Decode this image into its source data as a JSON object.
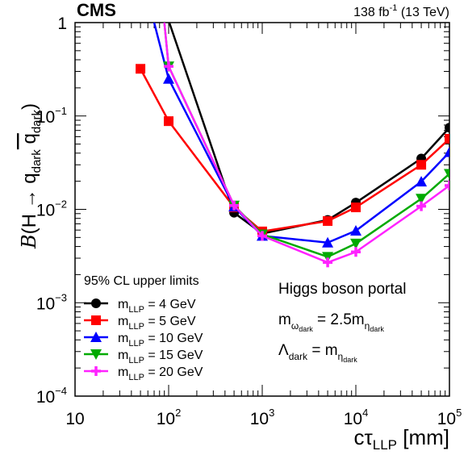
{
  "chart_data": {
    "type": "line",
    "experiment": "CMS",
    "luminosity_base": "138 fb",
    "luminosity_exp": "-1",
    "luminosity_energy": "(13 TeV)",
    "xscale": "log",
    "yscale": "log",
    "xlim": [
      10,
      100000
    ],
    "ylim": [
      0.0001,
      1
    ],
    "xlabel": {
      "main": "cτ",
      "sub": "LLP",
      "units": " [mm]"
    },
    "ylabel": {
      "func": "B",
      "open": "(H → q",
      "sub1": "dark",
      "mid": " q",
      "sub2": "dark",
      "close": ")"
    },
    "x_ticks": [
      {
        "value": 10,
        "base": "10",
        "exp": ""
      },
      {
        "value": 100,
        "base": "10",
        "exp": "2"
      },
      {
        "value": 1000,
        "base": "10",
        "exp": "3"
      },
      {
        "value": 10000,
        "base": "10",
        "exp": "4"
      },
      {
        "value": 100000,
        "base": "10",
        "exp": "5"
      }
    ],
    "y_ticks": [
      {
        "value": 0.0001,
        "base": "10",
        "exp": "−4"
      },
      {
        "value": 0.001,
        "base": "10",
        "exp": "−3"
      },
      {
        "value": 0.01,
        "base": "10",
        "exp": "−2"
      },
      {
        "value": 0.1,
        "base": "10",
        "exp": "−1"
      },
      {
        "value": 1,
        "base": "1",
        "exp": ""
      }
    ],
    "legend_title": "95% CL upper limits",
    "legend_position": "bottom-left",
    "series": [
      {
        "name_main": "m",
        "name_sub": "LLP",
        "name_rest": " = 4 GeV",
        "color": "#000000",
        "marker": "circle",
        "x": [
          100,
          500,
          1000,
          5000,
          10000,
          50000,
          100000
        ],
        "y": [
          1.05,
          0.0092,
          0.0055,
          0.0077,
          0.0118,
          0.035,
          0.075
        ]
      },
      {
        "name_main": "m",
        "name_sub": "LLP",
        "name_rest": " = 5 GeV",
        "color": "#ff0000",
        "marker": "square",
        "x": [
          50,
          100,
          500,
          1000,
          5000,
          10000,
          50000,
          100000
        ],
        "y": [
          0.32,
          0.088,
          0.0105,
          0.0058,
          0.0075,
          0.0105,
          0.03,
          0.057
        ]
      },
      {
        "name_main": "m",
        "name_sub": "LLP",
        "name_rest": " = 10 GeV",
        "color": "#0000ff",
        "marker": "triangle-up",
        "x": [
          70,
          100,
          500,
          1000,
          5000,
          10000,
          50000,
          100000
        ],
        "y": [
          1.0,
          0.25,
          0.0107,
          0.0052,
          0.0044,
          0.0059,
          0.0198,
          0.041
        ]
      },
      {
        "name_main": "m",
        "name_sub": "LLP",
        "name_rest": " = 15 GeV",
        "color": "#00aa00",
        "marker": "triangle-down",
        "x": [
          90,
          100,
          500,
          1000,
          5000,
          10000,
          50000,
          100000
        ],
        "y": [
          1.0,
          0.34,
          0.011,
          0.0054,
          0.0031,
          0.0043,
          0.013,
          0.024
        ]
      },
      {
        "name_main": "m",
        "name_sub": "LLP",
        "name_rest": " = 20 GeV",
        "color": "#ff22ff",
        "marker": "cross",
        "x": [
          90,
          100,
          500,
          1000,
          5000,
          10000,
          50000,
          100000
        ],
        "y": [
          1.0,
          0.34,
          0.011,
          0.0052,
          0.0027,
          0.0035,
          0.0108,
          0.018
        ]
      }
    ],
    "annotations": {
      "portal": "Higgs boson portal",
      "line1": {
        "m": "m",
        "sub": "ω",
        "subsub": "dark",
        "eq": " = 2.5m",
        "sub2": "η",
        "subsub2": "dark"
      },
      "line2": {
        "lambda": "Λ",
        "sub": "dark",
        "eq": " = m",
        "sub2": "η",
        "subsub2": "dark"
      }
    }
  }
}
